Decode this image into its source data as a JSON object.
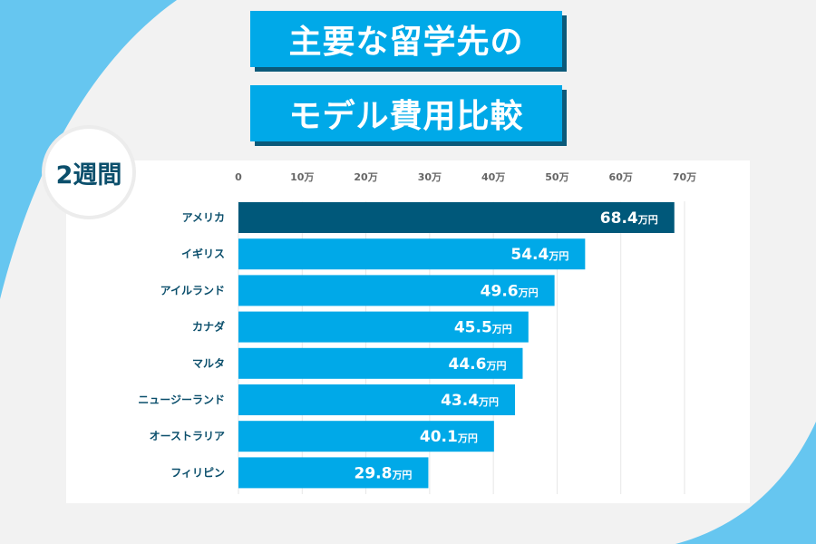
{
  "title_line1": "主要な留学先の",
  "title_line2": "モデル費用比較",
  "badge": "2週間",
  "colors": {
    "accent": "#00a9e8",
    "highlight": "#00587a",
    "shadow": "#0b5a7a",
    "label": "#0b4f6c",
    "blob": "#66c6f0"
  },
  "chart_data": {
    "type": "bar",
    "orientation": "horizontal",
    "categories": [
      "アメリカ",
      "イギリス",
      "アイルランド",
      "カナダ",
      "マルタ",
      "ニュージーランド",
      "オーストラリア",
      "フィリピン"
    ],
    "values": [
      68.4,
      54.4,
      49.6,
      45.5,
      44.6,
      43.4,
      40.1,
      29.8
    ],
    "value_unit": "万円",
    "xlim": [
      0,
      70
    ],
    "x_ticks": [
      "0",
      "10万",
      "20万",
      "30万",
      "40万",
      "50万",
      "60万",
      "70万"
    ],
    "tick_values": [
      0,
      10,
      20,
      30,
      40,
      50,
      60,
      70
    ],
    "grid": true,
    "highlight_index": 0
  }
}
